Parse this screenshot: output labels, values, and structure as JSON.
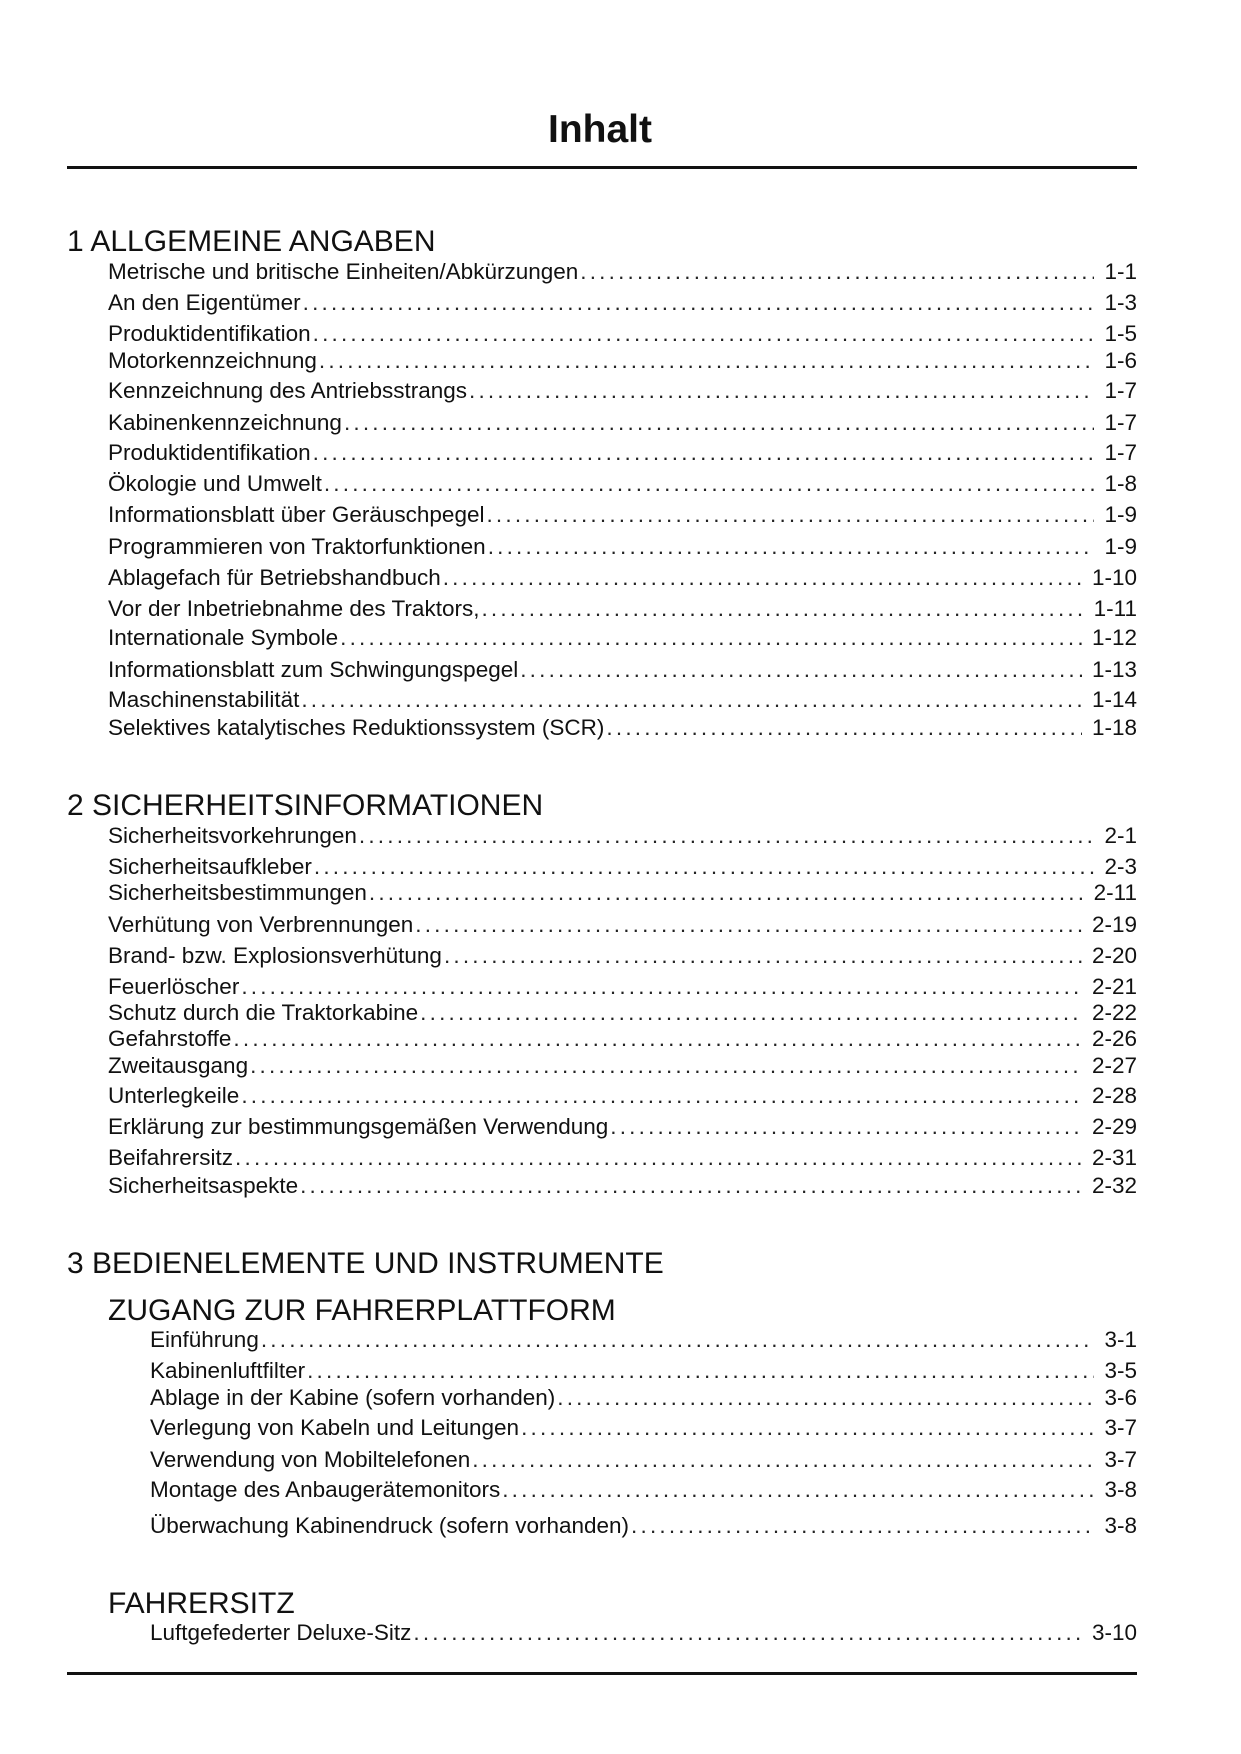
{
  "title": "Inhalt",
  "sections": [
    {
      "heading": "1 ALLGEMEINE ANGABEN",
      "entries": [
        {
          "label": "Metrische und britische Einheiten/Abkürzungen",
          "page": "1-1"
        },
        {
          "label": "An den Eigentümer",
          "page": "1-3"
        },
        {
          "label": "Produktidentifikation",
          "page": "1-5"
        },
        {
          "label": "Motorkennzeichnung",
          "page": "1-6"
        },
        {
          "label": "Kennzeichnung des Antriebsstrangs",
          "page": "1-7"
        },
        {
          "label": "Kabinenkennzeichnung",
          "page": "1-7"
        },
        {
          "label": "Produktidentifikation",
          "page": "1-7"
        },
        {
          "label": "Ökologie und Umwelt",
          "page": "1-8"
        },
        {
          "label": "Informationsblatt über Geräuschpegel",
          "page": "1-9"
        },
        {
          "label": "Programmieren von Traktorfunktionen",
          "page": "1-9"
        },
        {
          "label": "Ablagefach für Betriebshandbuch",
          "page": "1-10"
        },
        {
          "label": "Vor der Inbetriebnahme des Traktors,",
          "page": "1-11"
        },
        {
          "label": "Internationale Symbole",
          "page": "1-12"
        },
        {
          "label": "Informationsblatt zum Schwingungspegel",
          "page": "1-13"
        },
        {
          "label": "Maschinenstabilität",
          "page": "1-14"
        },
        {
          "label": "Selektives katalytisches Reduktionssystem (SCR)",
          "page": "1-18"
        }
      ]
    },
    {
      "heading": "2 SICHERHEITSINFORMATIONEN",
      "entries": [
        {
          "label": "Sicherheitsvorkehrungen",
          "page": "2-1"
        },
        {
          "label": "Sicherheitsaufkleber",
          "page": "2-3"
        },
        {
          "label": "Sicherheitsbestimmungen",
          "page": "2-11"
        },
        {
          "label": "Verhütung von Verbrennungen",
          "page": "2-19"
        },
        {
          "label": "Brand- bzw. Explosionsverhütung",
          "page": "2-20"
        },
        {
          "label": "Feuerlöscher",
          "page": "2-21"
        },
        {
          "label": "Schutz durch die Traktorkabine",
          "page": "2-22"
        },
        {
          "label": "Gefahrstoffe",
          "page": "2-26"
        },
        {
          "label": "Zweitausgang",
          "page": "2-27"
        },
        {
          "label": "Unterlegkeile",
          "page": "2-28"
        },
        {
          "label": "Erklärung zur bestimmungsgemäßen Verwendung",
          "page": "2-29"
        },
        {
          "label": "Beifahrersitz",
          "page": "2-31"
        },
        {
          "label": "Sicherheitsaspekte",
          "page": "2-32"
        }
      ]
    },
    {
      "heading": "3 BEDIENELEMENTE UND INSTRUMENTE",
      "subsections": [
        {
          "heading": "ZUGANG ZUR FAHRERPLATTFORM",
          "entries": [
            {
              "label": "Einführung",
              "page": "3-1"
            },
            {
              "label": "Kabinenluftfilter",
              "page": "3-5"
            },
            {
              "label": "Ablage in der Kabine (sofern vorhanden)",
              "page": "3-6"
            },
            {
              "label": "Verlegung von Kabeln und Leitungen",
              "page": "3-7"
            },
            {
              "label": "Verwendung von Mobiltelefonen",
              "page": "3-7"
            },
            {
              "label": "Montage des Anbaugerätemonitors",
              "page": "3-8"
            },
            {
              "label": "Überwachung Kabinendruck (sofern vorhanden)",
              "page": "3-8"
            }
          ]
        },
        {
          "heading": "FAHRERSITZ",
          "entries": [
            {
              "label": "Luftgefederter Deluxe-Sitz",
              "page": "3-10"
            }
          ]
        }
      ]
    }
  ]
}
